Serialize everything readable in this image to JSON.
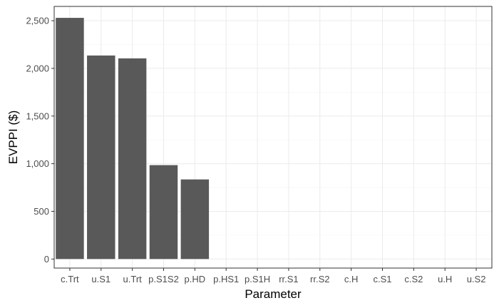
{
  "chart_data": {
    "type": "bar",
    "title": "",
    "xlabel": "Parameter",
    "ylabel": "EVPPI ($)",
    "categories": [
      "c.Trt",
      "u.S1",
      "u.Trt",
      "p.S1S2",
      "p.HD",
      "p.HS1",
      "p.S1H",
      "rr.S1",
      "rr.S2",
      "c.H",
      "c.S1",
      "c.S2",
      "u.H",
      "u.S2"
    ],
    "values": [
      2530,
      2135,
      2105,
      985,
      835,
      0,
      0,
      0,
      0,
      0,
      0,
      0,
      0,
      0
    ],
    "ylim": [
      -95,
      2650
    ],
    "yticks": [
      0,
      500,
      1000,
      1500,
      2000,
      2500
    ],
    "ytick_labels": [
      "0",
      "500",
      "1,000",
      "1,500",
      "2,000",
      "2,500"
    ],
    "grid": true,
    "legend": "none",
    "colors": {
      "bar": "#595959",
      "grid_major": "#ebebeb",
      "grid_minor": "#f5f5f5",
      "panel_border": "#333333",
      "tick_text": "#4d4d4d"
    }
  }
}
